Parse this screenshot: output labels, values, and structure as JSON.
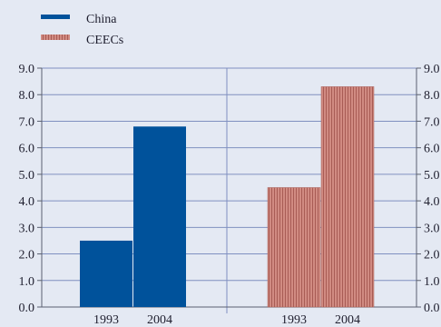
{
  "chart_data": {
    "type": "bar",
    "legend": [
      {
        "label": "China",
        "color": "#00529b",
        "pattern": "solid"
      },
      {
        "label": "CEECs",
        "color": "#d18b82",
        "pattern": "vertical-stripes"
      }
    ],
    "legend_position": "top-left",
    "ylim": [
      0,
      9
    ],
    "yticks": [
      "0.0",
      "1.0",
      "2.0",
      "3.0",
      "4.0",
      "5.0",
      "6.0",
      "7.0",
      "8.0",
      "9.0"
    ],
    "grid": true,
    "panels": [
      {
        "series": "China",
        "categories": [
          "1993",
          "2004"
        ],
        "values": [
          2.5,
          6.8
        ]
      },
      {
        "series": "CEECs",
        "categories": [
          "1993",
          "2004"
        ],
        "values": [
          4.5,
          8.3
        ]
      }
    ],
    "colors": {
      "background": "#e4e9f3",
      "grid": "#8090c0",
      "china": "#00529b",
      "ceecs": "#d18b82",
      "ceecs_stripe": "#a85c55"
    }
  }
}
